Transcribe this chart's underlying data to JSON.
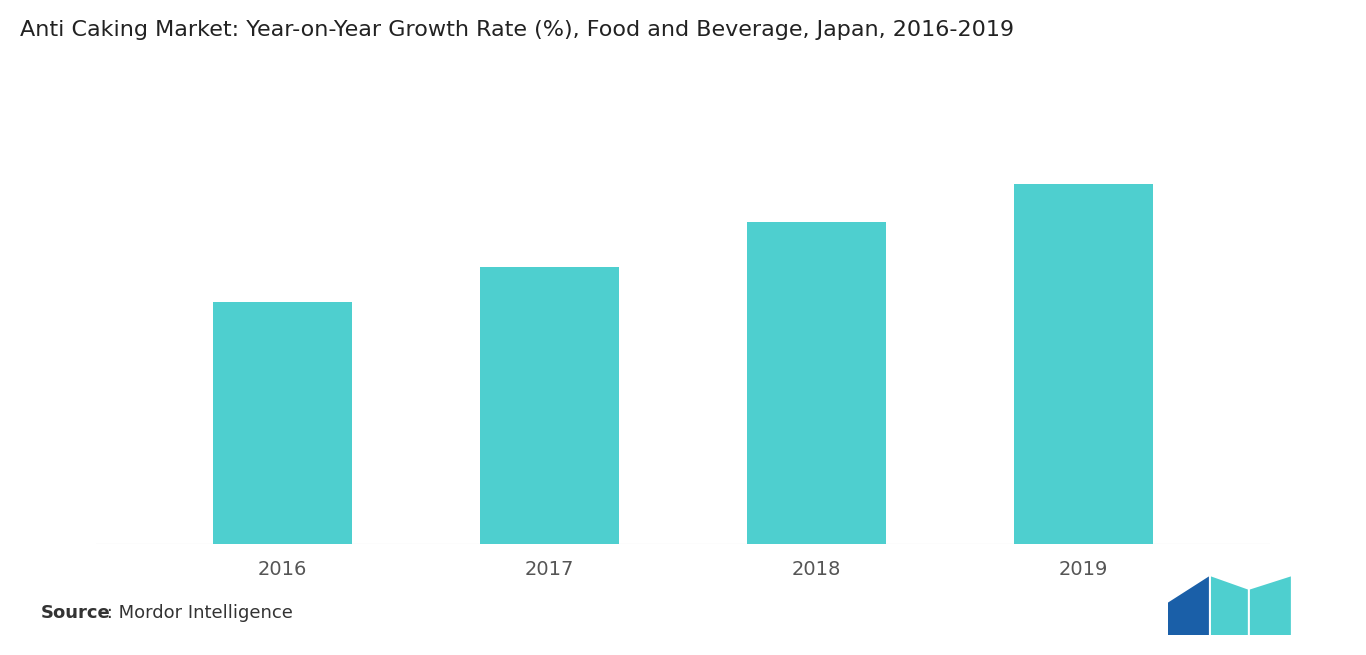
{
  "title": "Anti Caking Market: Year-on-Year Growth Rate (%), Food and Beverage, Japan, 2016-2019",
  "categories": [
    "2016",
    "2017",
    "2018",
    "2019"
  ],
  "values": [
    3.2,
    3.65,
    4.25,
    4.75
  ],
  "bar_color": "#4ECFCF",
  "background_color": "#ffffff",
  "source_bold": "Source",
  "source_rest": " : Mordor Intelligence",
  "title_fontsize": 16,
  "tick_fontsize": 14,
  "source_fontsize": 13,
  "ylim": [
    0,
    5.8
  ],
  "bar_width": 0.52
}
